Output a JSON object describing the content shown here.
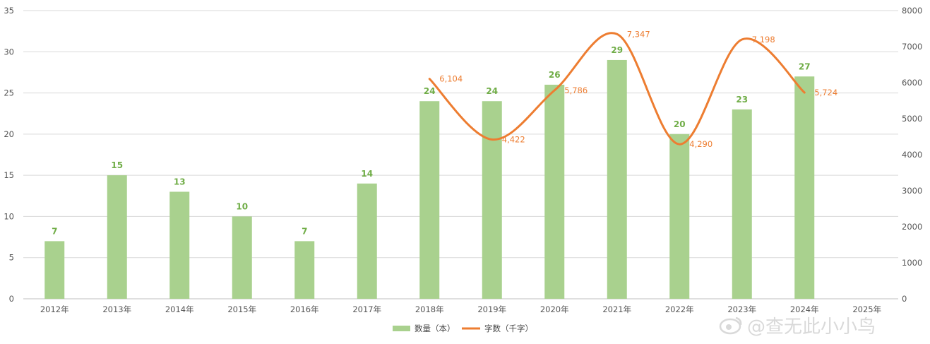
{
  "chart_data": {
    "type": "bar",
    "categories": [
      "2012年",
      "2013年",
      "2014年",
      "2015年",
      "2016年",
      "2017年",
      "2018年",
      "2019年",
      "2020年",
      "2021年",
      "2022年",
      "2023年",
      "2024年",
      "2025年"
    ],
    "series": [
      {
        "name": "数量（本）",
        "type": "bar",
        "axis": "left",
        "color": "#A9D18E",
        "label_color": "#70AD47",
        "values": [
          7,
          15,
          13,
          10,
          7,
          14,
          24,
          24,
          26,
          29,
          20,
          23,
          27,
          null
        ],
        "labels": [
          "7",
          "15",
          "13",
          "10",
          "7",
          "14",
          "24",
          "24",
          "26",
          "29",
          "20",
          "23",
          "27",
          ""
        ]
      },
      {
        "name": "字数（千字）",
        "type": "line",
        "smooth": true,
        "axis": "right",
        "color": "#ED7D31",
        "values": [
          null,
          null,
          null,
          null,
          null,
          null,
          6104,
          4422,
          5786,
          7347,
          4290,
          7198,
          5724,
          null
        ],
        "labels": [
          "",
          "",
          "",
          "",
          "",
          "",
          "6,104",
          "4,422",
          "5,786",
          "7,347",
          "4,290",
          "7,198",
          "5,724",
          ""
        ]
      }
    ],
    "y_left": {
      "ylim": [
        0,
        35
      ],
      "ticks": [
        "0",
        "5",
        "10",
        "15",
        "20",
        "25",
        "30",
        "35"
      ]
    },
    "y_right": {
      "ylim": [
        0,
        8000
      ],
      "ticks": [
        "0",
        "1000",
        "2000",
        "3000",
        "4000",
        "5000",
        "6000",
        "7000",
        "8000"
      ]
    },
    "grid": true,
    "legend_position": "bottom",
    "title": "",
    "xlabel": "",
    "ylabel": ""
  },
  "watermark": {
    "text": "@查无此小小鸟",
    "icon": "weibo-icon"
  }
}
